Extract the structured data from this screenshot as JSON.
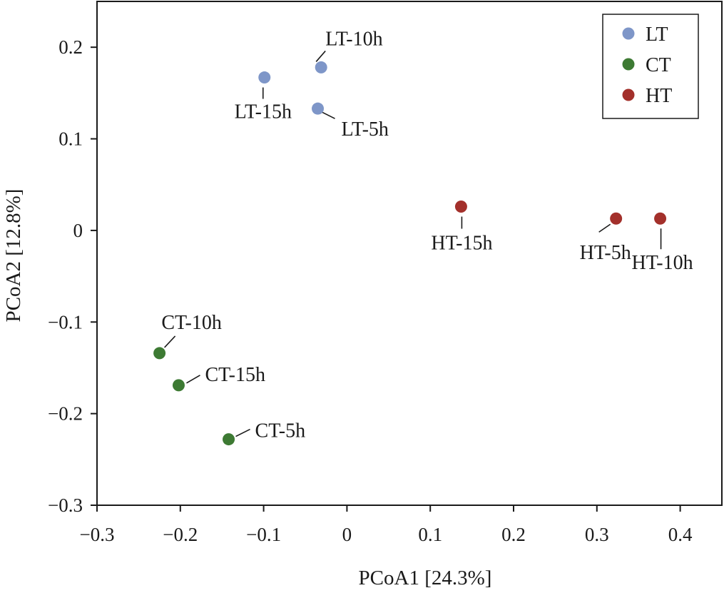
{
  "chart_data": {
    "type": "scatter",
    "title": "",
    "xlabel": "PCoA1 [24.3%]",
    "ylabel": "PCoA2 [12.8%]",
    "xlim": [
      -0.3,
      0.45
    ],
    "ylim": [
      -0.3,
      0.25
    ],
    "xticks": [
      -0.3,
      -0.2,
      -0.1,
      0,
      0.1,
      0.2,
      0.3,
      0.4
    ],
    "xtick_labels": [
      "−0.3",
      "−0.2",
      "−0.1",
      "0",
      "0.1",
      "0.2",
      "0.3",
      "0.4"
    ],
    "yticks": [
      -0.3,
      -0.2,
      -0.1,
      0,
      0.1,
      0.2
    ],
    "ytick_labels": [
      "−0.3",
      "−0.2",
      "−0.1",
      "0",
      "0.1",
      "0.2"
    ],
    "grid": false,
    "legend_position": "top-right",
    "series": [
      {
        "name": "LT",
        "color": "#7e96c8",
        "points": [
          {
            "label": "LT-10h",
            "x": -0.031,
            "y": 0.178
          },
          {
            "label": "LT-15h",
            "x": -0.099,
            "y": 0.167
          },
          {
            "label": "LT-5h",
            "x": -0.035,
            "y": 0.133
          }
        ]
      },
      {
        "name": "CT",
        "color": "#3d7a33",
        "points": [
          {
            "label": "CT-10h",
            "x": -0.225,
            "y": -0.134
          },
          {
            "label": "CT-15h",
            "x": -0.202,
            "y": -0.169
          },
          {
            "label": "CT-5h",
            "x": -0.142,
            "y": -0.228
          }
        ]
      },
      {
        "name": "HT",
        "color": "#a3302b",
        "points": [
          {
            "label": "HT-15h",
            "x": 0.137,
            "y": 0.026
          },
          {
            "label": "HT-5h",
            "x": 0.323,
            "y": 0.013
          },
          {
            "label": "HT-10h",
            "x": 0.376,
            "y": 0.013
          }
        ]
      }
    ]
  }
}
